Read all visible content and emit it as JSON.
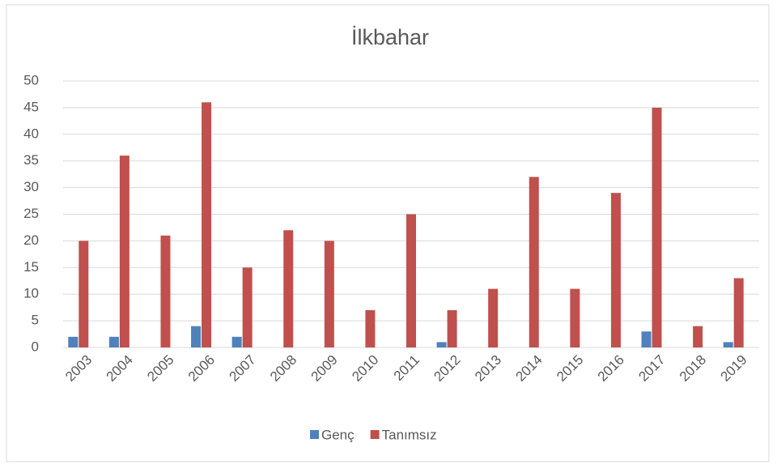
{
  "chart_data": {
    "type": "bar",
    "title": "İlkbahar",
    "categories": [
      "2003",
      "2004",
      "2005",
      "2006",
      "2007",
      "2008",
      "2009",
      "2010",
      "2011",
      "2012",
      "2013",
      "2014",
      "2015",
      "2016",
      "2017",
      "2018",
      "2019"
    ],
    "series": [
      {
        "name": "Genç",
        "color": "#4f81bd",
        "values": [
          2,
          2,
          0,
          4,
          2,
          0,
          0,
          0,
          0,
          1,
          0,
          0,
          0,
          0,
          3,
          0,
          1
        ]
      },
      {
        "name": "Tanımsız",
        "color": "#c0504d",
        "values": [
          20,
          36,
          21,
          46,
          15,
          22,
          20,
          7,
          25,
          7,
          11,
          32,
          11,
          29,
          45,
          4,
          13
        ]
      }
    ],
    "ylim": [
      0,
      50
    ],
    "yticks": [
      0,
      5,
      10,
      15,
      20,
      25,
      30,
      35,
      40,
      45,
      50
    ],
    "grid": true,
    "legend": "bottom"
  }
}
